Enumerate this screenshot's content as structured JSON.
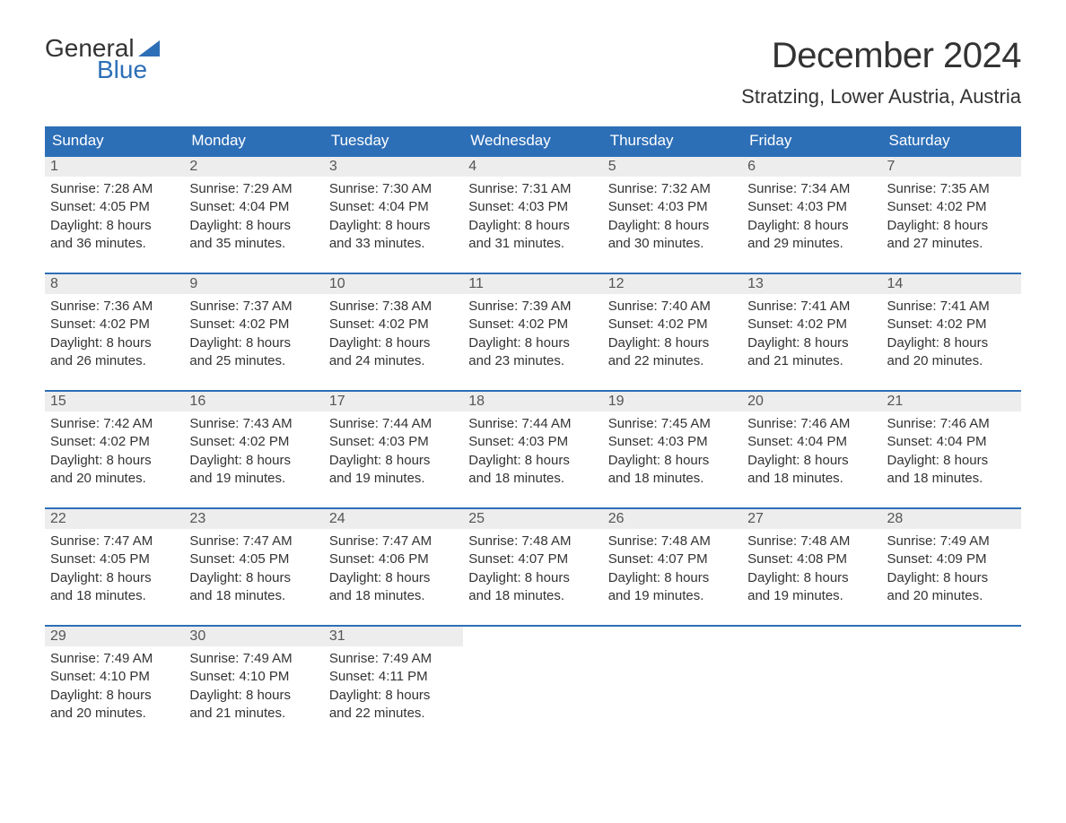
{
  "logo": {
    "top": "General",
    "bottom": "Blue",
    "flag_color": "#2d6fb7"
  },
  "title": "December 2024",
  "location": "Stratzing, Lower Austria, Austria",
  "colors": {
    "header_bg": "#2d6fb7",
    "header_text": "#ffffff",
    "daynum_bg": "#ededed",
    "border": "#2d6fb7",
    "text": "#333333"
  },
  "typography": {
    "title_fontsize": 40,
    "location_fontsize": 22,
    "header_fontsize": 17,
    "body_fontsize": 15
  },
  "day_headers": [
    "Sunday",
    "Monday",
    "Tuesday",
    "Wednesday",
    "Thursday",
    "Friday",
    "Saturday"
  ],
  "labels": {
    "sunrise": "Sunrise:",
    "sunset": "Sunset:",
    "daylight": "Daylight:"
  },
  "weeks": [
    [
      {
        "day": "1",
        "sunrise": "7:28 AM",
        "sunset": "4:05 PM",
        "daylight_h": "8 hours",
        "daylight_m": "and 36 minutes."
      },
      {
        "day": "2",
        "sunrise": "7:29 AM",
        "sunset": "4:04 PM",
        "daylight_h": "8 hours",
        "daylight_m": "and 35 minutes."
      },
      {
        "day": "3",
        "sunrise": "7:30 AM",
        "sunset": "4:04 PM",
        "daylight_h": "8 hours",
        "daylight_m": "and 33 minutes."
      },
      {
        "day": "4",
        "sunrise": "7:31 AM",
        "sunset": "4:03 PM",
        "daylight_h": "8 hours",
        "daylight_m": "and 31 minutes."
      },
      {
        "day": "5",
        "sunrise": "7:32 AM",
        "sunset": "4:03 PM",
        "daylight_h": "8 hours",
        "daylight_m": "and 30 minutes."
      },
      {
        "day": "6",
        "sunrise": "7:34 AM",
        "sunset": "4:03 PM",
        "daylight_h": "8 hours",
        "daylight_m": "and 29 minutes."
      },
      {
        "day": "7",
        "sunrise": "7:35 AM",
        "sunset": "4:02 PM",
        "daylight_h": "8 hours",
        "daylight_m": "and 27 minutes."
      }
    ],
    [
      {
        "day": "8",
        "sunrise": "7:36 AM",
        "sunset": "4:02 PM",
        "daylight_h": "8 hours",
        "daylight_m": "and 26 minutes."
      },
      {
        "day": "9",
        "sunrise": "7:37 AM",
        "sunset": "4:02 PM",
        "daylight_h": "8 hours",
        "daylight_m": "and 25 minutes."
      },
      {
        "day": "10",
        "sunrise": "7:38 AM",
        "sunset": "4:02 PM",
        "daylight_h": "8 hours",
        "daylight_m": "and 24 minutes."
      },
      {
        "day": "11",
        "sunrise": "7:39 AM",
        "sunset": "4:02 PM",
        "daylight_h": "8 hours",
        "daylight_m": "and 23 minutes."
      },
      {
        "day": "12",
        "sunrise": "7:40 AM",
        "sunset": "4:02 PM",
        "daylight_h": "8 hours",
        "daylight_m": "and 22 minutes."
      },
      {
        "day": "13",
        "sunrise": "7:41 AM",
        "sunset": "4:02 PM",
        "daylight_h": "8 hours",
        "daylight_m": "and 21 minutes."
      },
      {
        "day": "14",
        "sunrise": "7:41 AM",
        "sunset": "4:02 PM",
        "daylight_h": "8 hours",
        "daylight_m": "and 20 minutes."
      }
    ],
    [
      {
        "day": "15",
        "sunrise": "7:42 AM",
        "sunset": "4:02 PM",
        "daylight_h": "8 hours",
        "daylight_m": "and 20 minutes."
      },
      {
        "day": "16",
        "sunrise": "7:43 AM",
        "sunset": "4:02 PM",
        "daylight_h": "8 hours",
        "daylight_m": "and 19 minutes."
      },
      {
        "day": "17",
        "sunrise": "7:44 AM",
        "sunset": "4:03 PM",
        "daylight_h": "8 hours",
        "daylight_m": "and 19 minutes."
      },
      {
        "day": "18",
        "sunrise": "7:44 AM",
        "sunset": "4:03 PM",
        "daylight_h": "8 hours",
        "daylight_m": "and 18 minutes."
      },
      {
        "day": "19",
        "sunrise": "7:45 AM",
        "sunset": "4:03 PM",
        "daylight_h": "8 hours",
        "daylight_m": "and 18 minutes."
      },
      {
        "day": "20",
        "sunrise": "7:46 AM",
        "sunset": "4:04 PM",
        "daylight_h": "8 hours",
        "daylight_m": "and 18 minutes."
      },
      {
        "day": "21",
        "sunrise": "7:46 AM",
        "sunset": "4:04 PM",
        "daylight_h": "8 hours",
        "daylight_m": "and 18 minutes."
      }
    ],
    [
      {
        "day": "22",
        "sunrise": "7:47 AM",
        "sunset": "4:05 PM",
        "daylight_h": "8 hours",
        "daylight_m": "and 18 minutes."
      },
      {
        "day": "23",
        "sunrise": "7:47 AM",
        "sunset": "4:05 PM",
        "daylight_h": "8 hours",
        "daylight_m": "and 18 minutes."
      },
      {
        "day": "24",
        "sunrise": "7:47 AM",
        "sunset": "4:06 PM",
        "daylight_h": "8 hours",
        "daylight_m": "and 18 minutes."
      },
      {
        "day": "25",
        "sunrise": "7:48 AM",
        "sunset": "4:07 PM",
        "daylight_h": "8 hours",
        "daylight_m": "and 18 minutes."
      },
      {
        "day": "26",
        "sunrise": "7:48 AM",
        "sunset": "4:07 PM",
        "daylight_h": "8 hours",
        "daylight_m": "and 19 minutes."
      },
      {
        "day": "27",
        "sunrise": "7:48 AM",
        "sunset": "4:08 PM",
        "daylight_h": "8 hours",
        "daylight_m": "and 19 minutes."
      },
      {
        "day": "28",
        "sunrise": "7:49 AM",
        "sunset": "4:09 PM",
        "daylight_h": "8 hours",
        "daylight_m": "and 20 minutes."
      }
    ],
    [
      {
        "day": "29",
        "sunrise": "7:49 AM",
        "sunset": "4:10 PM",
        "daylight_h": "8 hours",
        "daylight_m": "and 20 minutes."
      },
      {
        "day": "30",
        "sunrise": "7:49 AM",
        "sunset": "4:10 PM",
        "daylight_h": "8 hours",
        "daylight_m": "and 21 minutes."
      },
      {
        "day": "31",
        "sunrise": "7:49 AM",
        "sunset": "4:11 PM",
        "daylight_h": "8 hours",
        "daylight_m": "and 22 minutes."
      },
      null,
      null,
      null,
      null
    ]
  ]
}
